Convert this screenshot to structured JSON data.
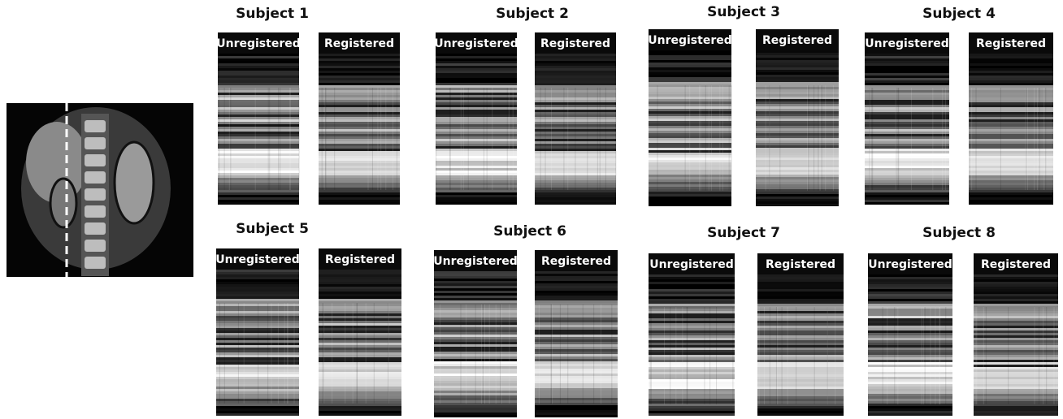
{
  "subjects": [
    {
      "title": "Subject 1",
      "panels": [
        "Unregistered",
        "Registered"
      ]
    },
    {
      "title": "Subject 2",
      "panels": [
        "Unregistered",
        "Registered"
      ]
    },
    {
      "title": "Subject 3",
      "panels": [
        "Unregistered",
        "Registered"
      ]
    },
    {
      "title": "Subject 4",
      "panels": [
        "Unregistered",
        "Registered"
      ]
    },
    {
      "title": "Subject 5",
      "panels": [
        "Unregistered",
        "Registered"
      ]
    },
    {
      "title": "Subject 6",
      "panels": [
        "Unregistered",
        "Registered"
      ]
    },
    {
      "title": "Subject 7",
      "panels": [
        "Unregistered",
        "Registered"
      ]
    },
    {
      "title": "Subject 8",
      "panels": [
        "Unregistered",
        "Registered"
      ]
    }
  ]
}
